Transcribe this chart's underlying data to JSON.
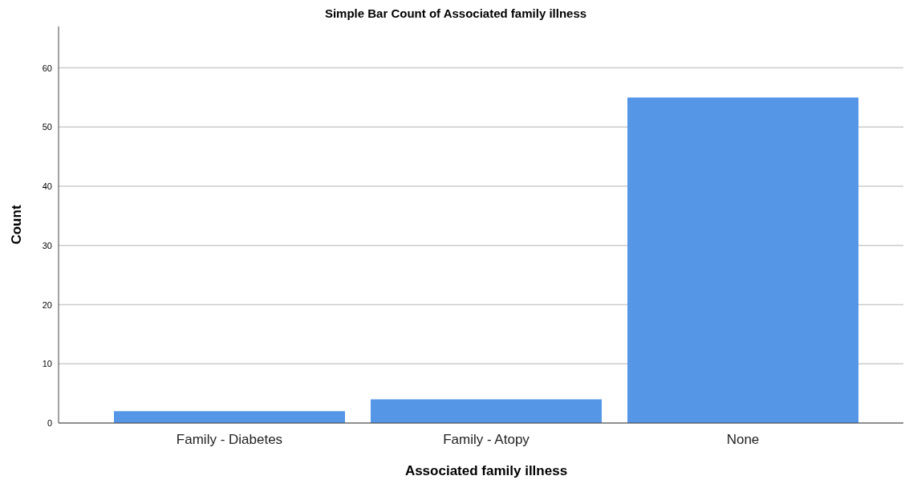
{
  "chart_data": {
    "type": "bar",
    "title": "Simple Bar Count of Associated family illness",
    "xlabel": "Associated family illness",
    "ylabel": "Count",
    "categories": [
      "Family - Diabetes",
      "Family - Atopy",
      "None"
    ],
    "values": [
      2,
      4,
      55
    ],
    "color": "#5596e6",
    "ylim": [
      0,
      67
    ],
    "yticks": [
      0,
      10,
      20,
      30,
      40,
      50,
      60
    ],
    "grid": "y"
  }
}
